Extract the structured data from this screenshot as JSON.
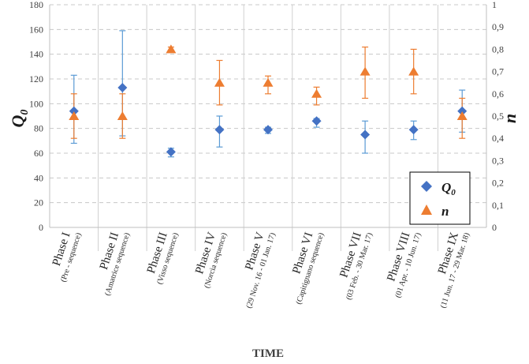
{
  "chart_data": {
    "type": "scatter",
    "title": "",
    "xlabel": "TIME",
    "ylabel_left": "Q0",
    "ylabel_left_base": "Q",
    "ylabel_left_sub": "0",
    "ylabel_right": "n",
    "ylim_left": [
      0,
      180
    ],
    "ylim_right": [
      0,
      1
    ],
    "yticks_left": [
      "0",
      "20",
      "40",
      "60",
      "80",
      "100",
      "120",
      "140",
      "160",
      "180"
    ],
    "yticks_right": [
      "0",
      "0,1",
      "0,2",
      "0,3",
      "0,4",
      "0,5",
      "0,6",
      "0,7",
      "0,8",
      "0,9",
      "1"
    ],
    "grid": "horizontal dashed",
    "legend_position": "bottom-right",
    "categories": [
      {
        "phase": "Phase I",
        "sub": "(Pre - sequence)"
      },
      {
        "phase": "Phase II",
        "sub": "(Amatrice sequence)"
      },
      {
        "phase": "Phase III",
        "sub": "(Visso sequence)"
      },
      {
        "phase": "Phase IV",
        "sub": "(Norcia sequence)"
      },
      {
        "phase": "Phase V",
        "sub": "(29 Nov. 16 - 01 Jan. 17)"
      },
      {
        "phase": "Phase VI",
        "sub": "(Capitignano sequence)"
      },
      {
        "phase": "Phase VII",
        "sub": "(03 Feb. - 30 Mar. 17)"
      },
      {
        "phase": "Phase VIII",
        "sub": "(01 Apr. - 10 Jun. 17)"
      },
      {
        "phase": "Phase IX",
        "sub": "(11 Jun. 17 - 29 Mar. 18)"
      }
    ],
    "series": [
      {
        "name": "Q0",
        "label_base": "Q",
        "label_sub": "0",
        "axis": "left",
        "marker": "diamond",
        "color": "#4472C4",
        "errcolor": "#5B9BD5",
        "values": [
          94,
          113,
          61,
          79,
          79,
          86,
          75,
          79,
          94
        ],
        "err_low": [
          68,
          74,
          57,
          65,
          76,
          81,
          60,
          71,
          77
        ],
        "err_high": [
          123,
          159,
          64,
          90,
          81,
          88,
          86,
          86,
          111
        ]
      },
      {
        "name": "n",
        "label_base": "n",
        "label_sub": "",
        "axis": "right",
        "marker": "triangle",
        "color": "#ED7D31",
        "errcolor": "#ED7D31",
        "values": [
          0.5,
          0.5,
          0.8,
          0.65,
          0.65,
          0.6,
          0.7,
          0.7,
          0.5
        ],
        "err_low": [
          0.4,
          0.4,
          0.79,
          0.55,
          0.6,
          0.55,
          0.58,
          0.6,
          0.4
        ],
        "err_high": [
          0.6,
          0.6,
          0.81,
          0.75,
          0.68,
          0.63,
          0.81,
          0.8,
          0.58
        ]
      }
    ]
  }
}
